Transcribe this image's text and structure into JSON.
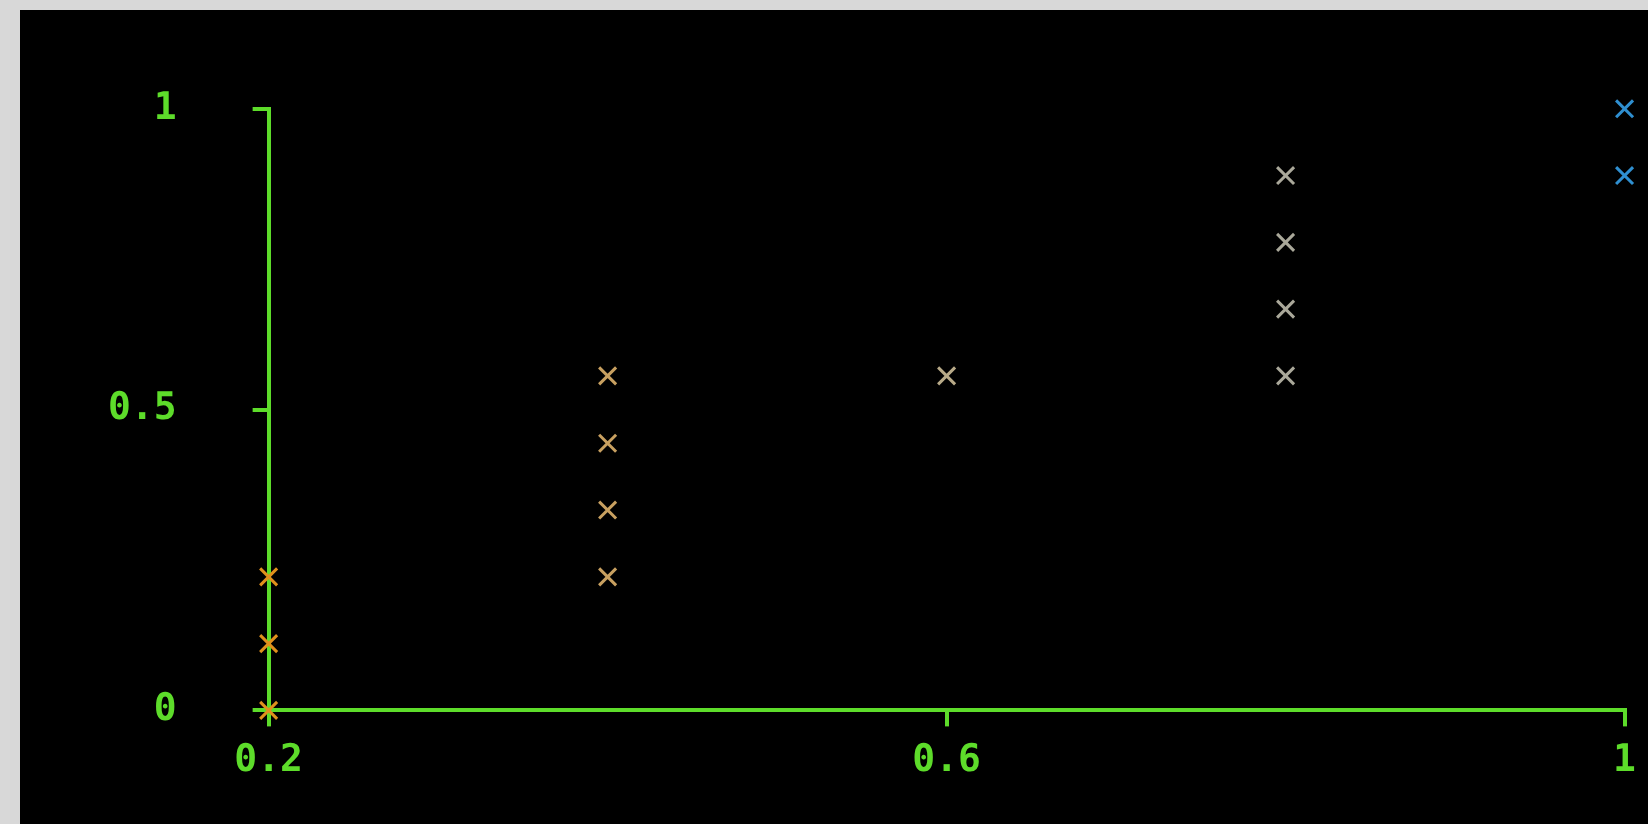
{
  "chart_data": {
    "type": "scatter",
    "marker": "cross",
    "grid": false,
    "x": [
      0.2,
      0.2,
      0.2,
      0.4,
      0.4,
      0.4,
      0.4,
      0.6,
      0.8,
      0.8,
      0.8,
      0.8,
      1,
      1
    ],
    "values": [
      0,
      0.111,
      0.222,
      0.222,
      0.333,
      0.444,
      0.556,
      0.556,
      0.556,
      0.667,
      0.778,
      0.889,
      0.889,
      1
    ],
    "colors": [
      "#e0901c",
      "#e0901c",
      "#e0901c",
      "#c8a060",
      "#c8a060",
      "#c8a060",
      "#c8a060",
      "#b8aa88",
      "#aaa89a",
      "#aaa89a",
      "#aaa89a",
      "#aaa89a",
      "#2f8fd0",
      "#2f8fd0"
    ],
    "xlim": [
      0.2,
      1
    ],
    "ylim": [
      0,
      1
    ],
    "xticks": [
      0.2,
      0.6,
      1
    ],
    "yticks": [
      0,
      0.5,
      1
    ]
  }
}
